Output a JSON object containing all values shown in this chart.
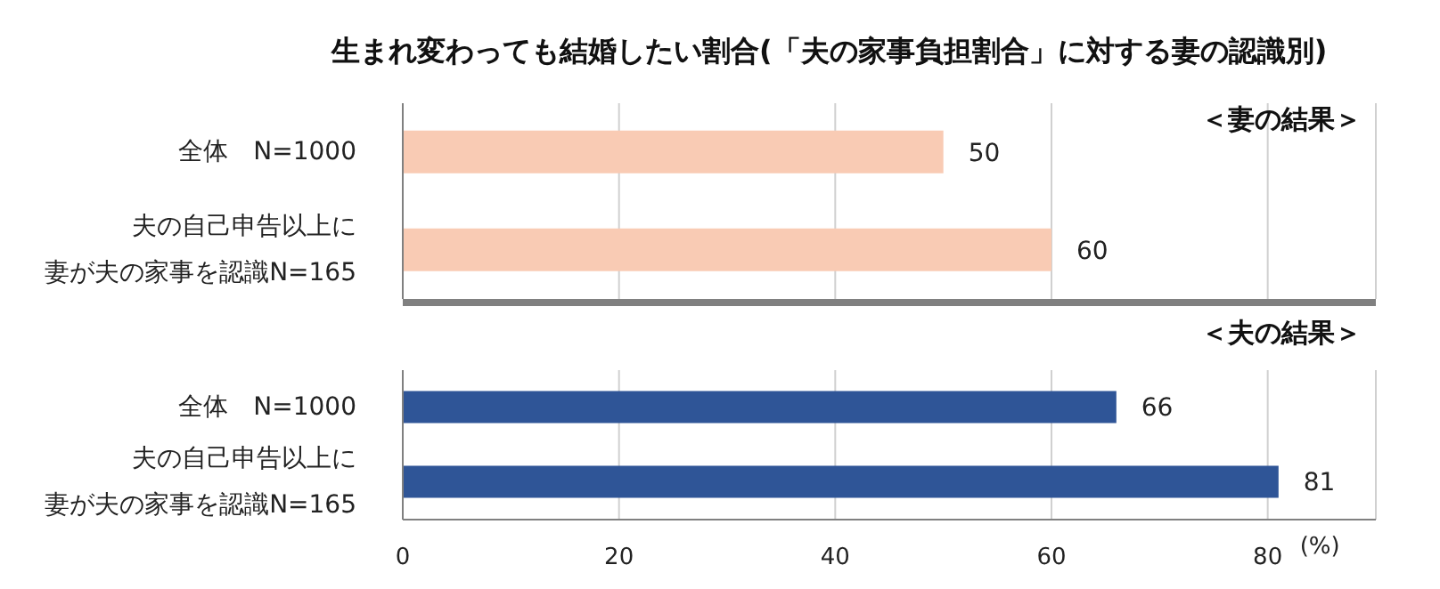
{
  "chart_data": [
    {
      "type": "bar",
      "title": "生まれ変わっても結婚したい割合(「夫の家事負担割合」に対する妻の認識別)",
      "orientation": "horizontal",
      "categories": [
        "全体　N=1000",
        "夫の自己申告以上に妻が夫の家事を認識N=165"
      ],
      "series": [
        {
          "color": "#f9cbb4",
          "values": [
            50,
            60
          ]
        }
      ],
      "xlim": [
        0,
        90
      ],
      "xticks": [
        0,
        20,
        40,
        60,
        80
      ],
      "grid": "x",
      "data_labels": true,
      "tick_labels": "y",
      "annotations": [
        "＜妻の結果＞"
      ]
    },
    {
      "type": "bar",
      "orientation": "horizontal",
      "categories": [
        "全体　N=1000",
        "夫の自己申告以上に妻が夫の家事を認識N=165"
      ],
      "series": [
        {
          "color": "#2f5597",
          "values": [
            66,
            81
          ]
        }
      ],
      "xlim": [
        0,
        90
      ],
      "xticks": [
        0,
        20,
        40,
        60,
        80
      ],
      "grid": "x",
      "data_labels": true,
      "xlabel": "(%)",
      "annotations": [
        "＜夫の結果＞"
      ]
    }
  ]
}
